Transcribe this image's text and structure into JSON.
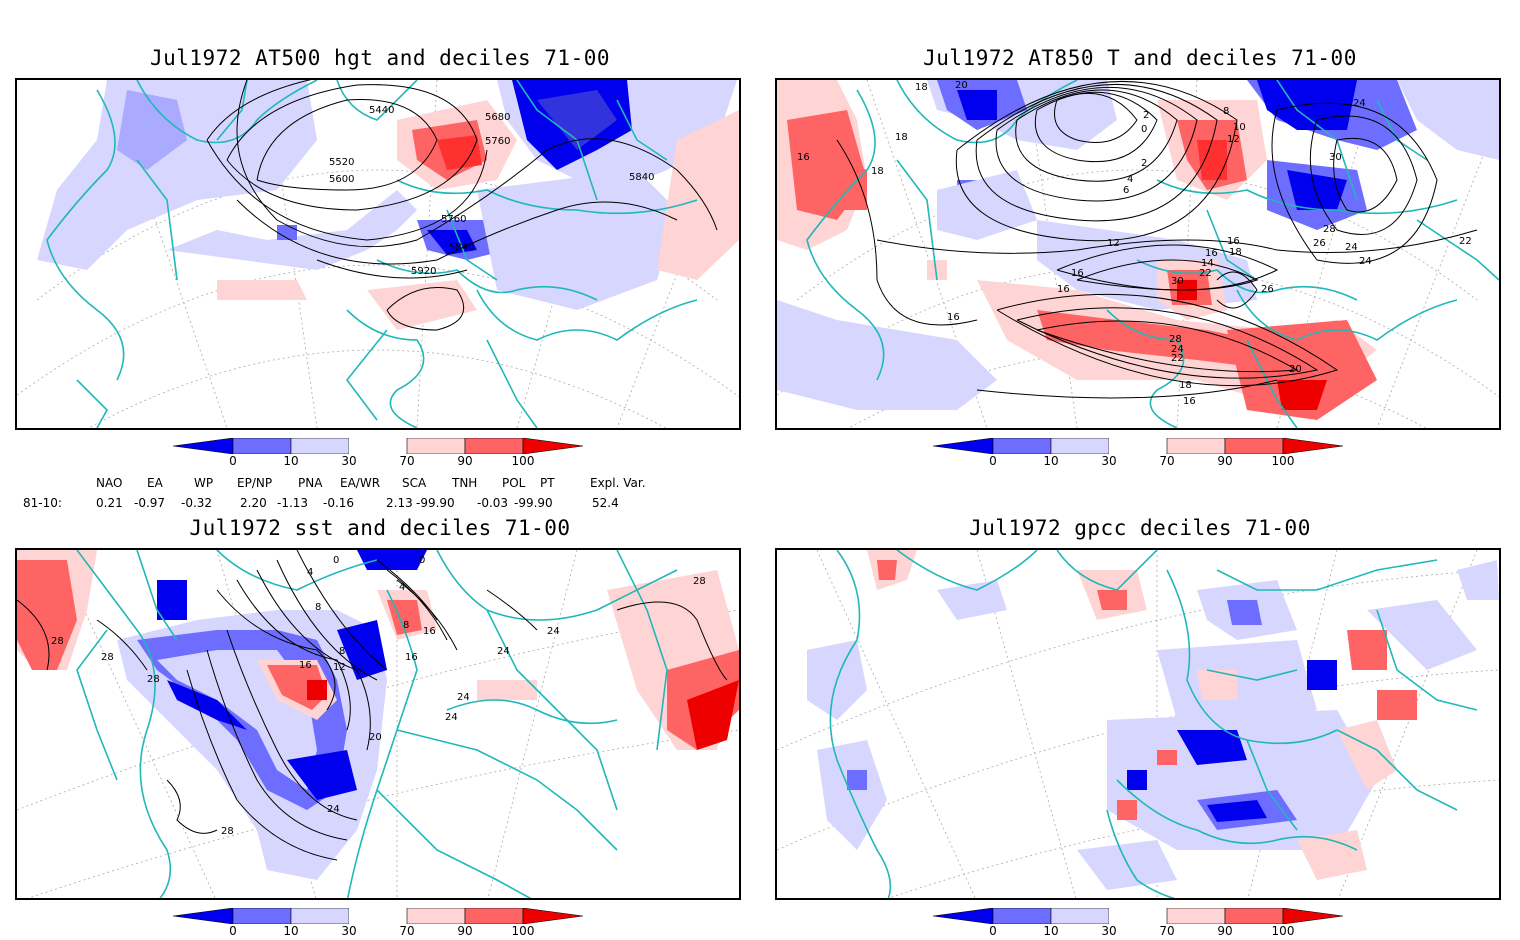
{
  "panels": [
    {
      "title": "Jul1972 AT500 hgt and deciles 71-00",
      "contour_labels": [
        "5440",
        "5680",
        "5760",
        "5520",
        "5600",
        "5840",
        "5760",
        "5840",
        "5920"
      ]
    },
    {
      "title": "Jul1972 AT850 T and deciles 71-00",
      "contour_labels": [
        "18",
        "20",
        "2",
        "8",
        "10",
        "12",
        "24",
        "18",
        "16",
        "18",
        "0",
        "2",
        "4",
        "6",
        "30",
        "16",
        "12",
        "18",
        "28",
        "26",
        "24",
        "16",
        "14",
        "22",
        "24",
        "22",
        "16",
        "16",
        "30",
        "26",
        "28",
        "24",
        "22",
        "20",
        "18",
        "16",
        "16"
      ]
    },
    {
      "title": "Jul1972 sst and deciles 71-00",
      "contour_labels": [
        "0",
        "0",
        "4",
        "4",
        "8",
        "8",
        "16",
        "28",
        "28",
        "28",
        "28",
        "16",
        "12",
        "8",
        "16",
        "24",
        "24",
        "20",
        "24",
        "24",
        "24",
        "28"
      ]
    },
    {
      "title": "Jul1972 gpcc deciles 71-00"
    }
  ],
  "colorbar": {
    "ticks": [
      "0",
      "10",
      "30",
      "70",
      "90",
      "100"
    ],
    "colors": [
      "#0000ee",
      "#6d6dff",
      "#d6d6ff",
      "#ffffff",
      "#ffd4d4",
      "#ff6464",
      "#ee0000"
    ]
  },
  "indices": {
    "headers": [
      "NAO",
      "EA",
      "WP",
      "EP/NP",
      "PNA",
      "EA/WR",
      "SCA",
      "TNH",
      "POL",
      "PT",
      "Expl. Var."
    ],
    "row_label": "81-10:",
    "values": [
      "0.21",
      "-0.97",
      "-0.32",
      "2.20",
      "-1.13",
      "-0.16",
      "2.13",
      "-99.90",
      "-0.03",
      "-99.90",
      "52.4"
    ]
  },
  "colors": {
    "coast": "#20b8b8",
    "contour": "#000000",
    "grid": "#999999"
  }
}
